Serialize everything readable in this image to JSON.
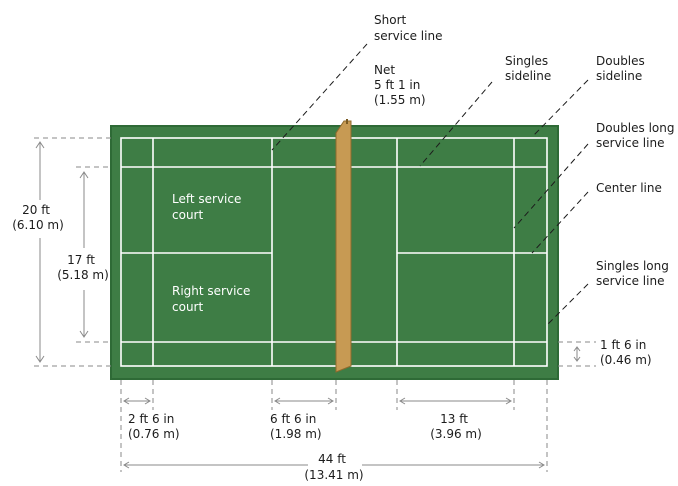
{
  "colors": {
    "court": "#3e7d45",
    "court_border": "#2e6a36",
    "lines": "#ffffff",
    "net": "#c79a53"
  },
  "labels": {
    "short_service_line": [
      "Short",
      "service line"
    ],
    "net": [
      "Net",
      "5 ft 1 in",
      "(1.55 m)"
    ],
    "singles_sideline": [
      "Singles",
      "sideline"
    ],
    "doubles_sideline": [
      "Doubles",
      "sideline"
    ],
    "doubles_long_service_line": [
      "Doubles long",
      "service line"
    ],
    "center_line": [
      "Center line"
    ],
    "singles_long_service_line": [
      "Singles long",
      "service line"
    ],
    "left_service_court": [
      "Left service",
      "court"
    ],
    "right_service_court": [
      "Right service",
      "court"
    ]
  },
  "dimensions": {
    "width_20ft": [
      "20 ft",
      "(6.10 m)"
    ],
    "width_17ft": [
      "17 ft",
      "(5.18 m)"
    ],
    "back_1ft6": [
      "1 ft  6 in",
      "(0.46 m)"
    ],
    "d_2ft6": [
      "2 ft 6 in",
      "(0.76 m)"
    ],
    "d_6ft6": [
      "6 ft 6 in",
      "(1.98 m)"
    ],
    "d_13ft": [
      "13 ft",
      "(3.96 m)"
    ],
    "length_44ft": [
      "44 ft",
      "(13.41 m)"
    ]
  }
}
